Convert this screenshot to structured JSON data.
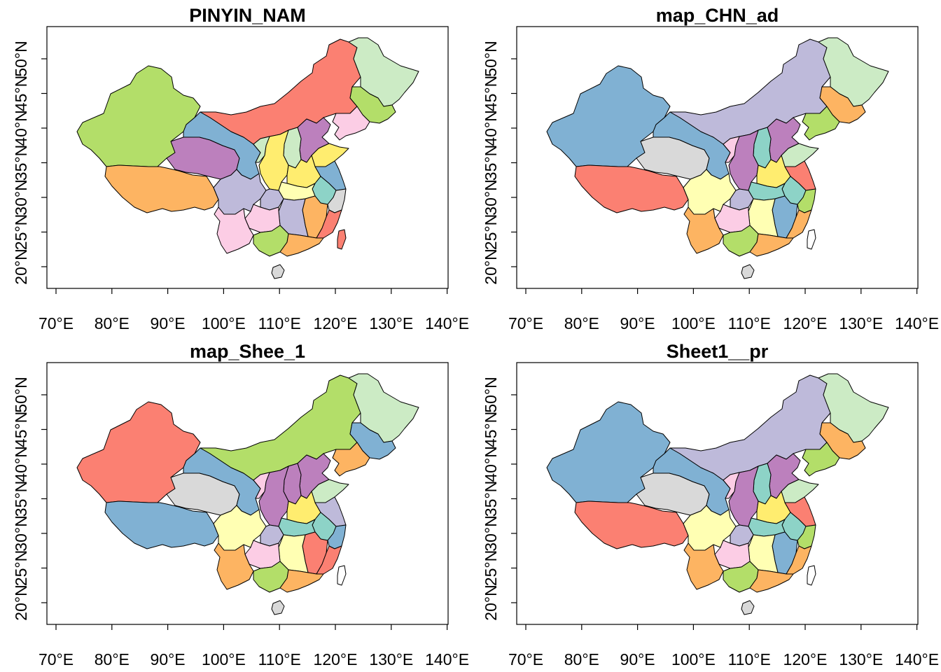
{
  "figure": {
    "lon_ticks": [
      "70°E",
      "80°E",
      "90°E",
      "100°E",
      "110°E",
      "120°E",
      "130°E",
      "140°E"
    ],
    "lat_ticks": [
      "20°N",
      "25°N",
      "30°N",
      "35°N",
      "40°N",
      "45°N",
      "50°N"
    ],
    "lon_values": [
      70,
      80,
      90,
      100,
      110,
      120,
      130,
      140
    ],
    "lat_values": [
      20,
      25,
      30,
      35,
      40,
      45,
      50
    ],
    "palette": {
      "salmon": "#fb8072",
      "blue": "#80b1d3",
      "purple": "#bebada",
      "mint": "#ccebc5",
      "green": "#b3de69",
      "orange": "#fdb462",
      "violet": "#bc80bd",
      "teal": "#8dd3c7",
      "yellow": "#ffed6f",
      "paleyellow": "#ffffb3",
      "pink": "#fccde5",
      "grey": "#d9d9d9"
    }
  },
  "panels": [
    {
      "title": "PINYIN_NAM",
      "colors": {
        "xinjiang": "#b3de69",
        "tibet": "#fdb462",
        "qinghai": "#bc80bd",
        "gansu": "#80b1d3",
        "inner_mongolia": "#fb8072",
        "heilongjiang": "#ccebc5",
        "jilin": "#b3de69",
        "liaoning": "#fccde5",
        "hebei": "#bc80bd",
        "shanxi": "#ccebc5",
        "shaanxi": "#ffed6f",
        "ningxia": "#ccebc5",
        "shandong": "#ffed6f",
        "henan": "#ffed6f",
        "jiangsu": "#80b1d3",
        "anhui": "#8dd3c7",
        "hubei": "#ffffb3",
        "zhejiang": "#d9d9d9",
        "jiangxi": "#fdb462",
        "hunan": "#bebada",
        "fujian": "#fb8072",
        "sichuan": "#bebada",
        "chongqing": "#bebada",
        "guizhou": "#fccde5",
        "yunnan": "#fccde5",
        "guangxi": "#b3de69",
        "guangdong": "#fdb462",
        "hainan": "#d9d9d9",
        "taiwan": "#fb8072"
      }
    },
    {
      "title": "map_CHN_ad",
      "colors": {
        "xinjiang": "#80b1d3",
        "tibet": "#fb8072",
        "qinghai": "#d9d9d9",
        "gansu": "#80b1d3",
        "inner_mongolia": "#bebada",
        "heilongjiang": "#ccebc5",
        "jilin": "#fdb462",
        "liaoning": "#b3de69",
        "hebei": "#bc80bd",
        "shanxi": "#8dd3c7",
        "shaanxi": "#bc80bd",
        "ningxia": "#fccde5",
        "shandong": "#ccebc5",
        "henan": "#ffed6f",
        "jiangsu": "#fb8072",
        "anhui": "#8dd3c7",
        "hubei": "#8dd3c7",
        "zhejiang": "#b3de69",
        "jiangxi": "#80b1d3",
        "hunan": "#ffffb3",
        "fujian": "#fdb462",
        "sichuan": "#ffffb3",
        "chongqing": "#bebada",
        "guizhou": "#fccde5",
        "yunnan": "#fdb462",
        "guangxi": "#b3de69",
        "guangdong": "#fdb462",
        "hainan": "#d9d9d9",
        "taiwan": "#ffffff"
      }
    },
    {
      "title": "map_Shee_1",
      "colors": {
        "xinjiang": "#fb8072",
        "tibet": "#80b1d3",
        "qinghai": "#d9d9d9",
        "gansu": "#80b1d3",
        "inner_mongolia": "#b3de69",
        "heilongjiang": "#ccebc5",
        "jilin": "#80b1d3",
        "liaoning": "#fdb462",
        "hebei": "#bc80bd",
        "shanxi": "#bc80bd",
        "shaanxi": "#bc80bd",
        "ningxia": "#fccde5",
        "shandong": "#ccebc5",
        "henan": "#ffed6f",
        "jiangsu": "#bebada",
        "anhui": "#8dd3c7",
        "hubei": "#8dd3c7",
        "zhejiang": "#80b1d3",
        "jiangxi": "#fb8072",
        "hunan": "#ffffb3",
        "fujian": "#fb8072",
        "sichuan": "#ffffb3",
        "chongqing": "#bebada",
        "guizhou": "#fccde5",
        "yunnan": "#fdb462",
        "guangxi": "#b3de69",
        "guangdong": "#fdb462",
        "hainan": "#d9d9d9",
        "taiwan": "#ffffff"
      }
    },
    {
      "title": "Sheet1__pr",
      "colors": {
        "xinjiang": "#80b1d3",
        "tibet": "#fb8072",
        "qinghai": "#d9d9d9",
        "gansu": "#80b1d3",
        "inner_mongolia": "#bebada",
        "heilongjiang": "#ccebc5",
        "jilin": "#fdb462",
        "liaoning": "#b3de69",
        "hebei": "#bc80bd",
        "shanxi": "#8dd3c7",
        "shaanxi": "#bc80bd",
        "ningxia": "#fccde5",
        "shandong": "#ccebc5",
        "henan": "#ffed6f",
        "jiangsu": "#fb8072",
        "anhui": "#8dd3c7",
        "hubei": "#8dd3c7",
        "zhejiang": "#b3de69",
        "jiangxi": "#80b1d3",
        "hunan": "#ffffb3",
        "fujian": "#fdb462",
        "sichuan": "#ffffb3",
        "chongqing": "#bebada",
        "guizhou": "#fccde5",
        "yunnan": "#fdb462",
        "guangxi": "#b3de69",
        "guangdong": "#fdb462",
        "hainan": "#d9d9d9",
        "taiwan": "#ffffff"
      }
    }
  ]
}
